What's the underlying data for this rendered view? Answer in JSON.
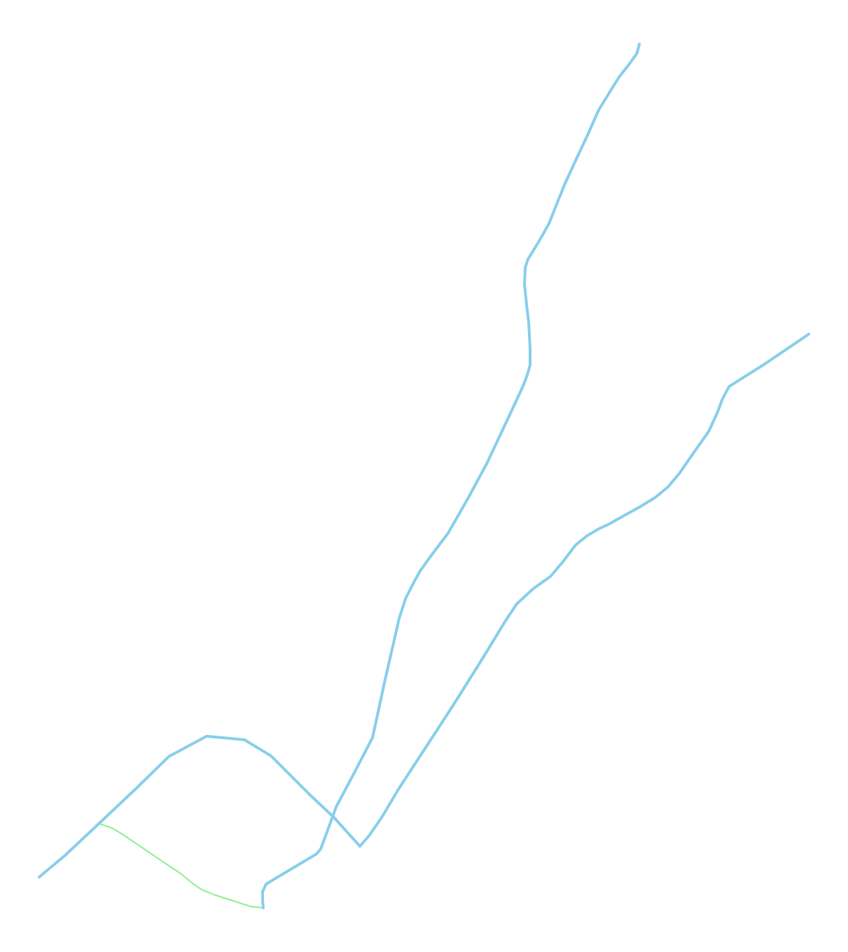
{
  "map": {
    "colors": {
      "background": "#ffffff",
      "main_route": "#87ceeb",
      "branch_route": "#90ee90"
    },
    "routes": [
      {
        "id": "north-route",
        "kind": "main"
      },
      {
        "id": "east-route",
        "kind": "main"
      },
      {
        "id": "west-loop-route",
        "kind": "main"
      },
      {
        "id": "southwest-connector",
        "kind": "main"
      },
      {
        "id": "green-branch",
        "kind": "branch"
      }
    ]
  }
}
